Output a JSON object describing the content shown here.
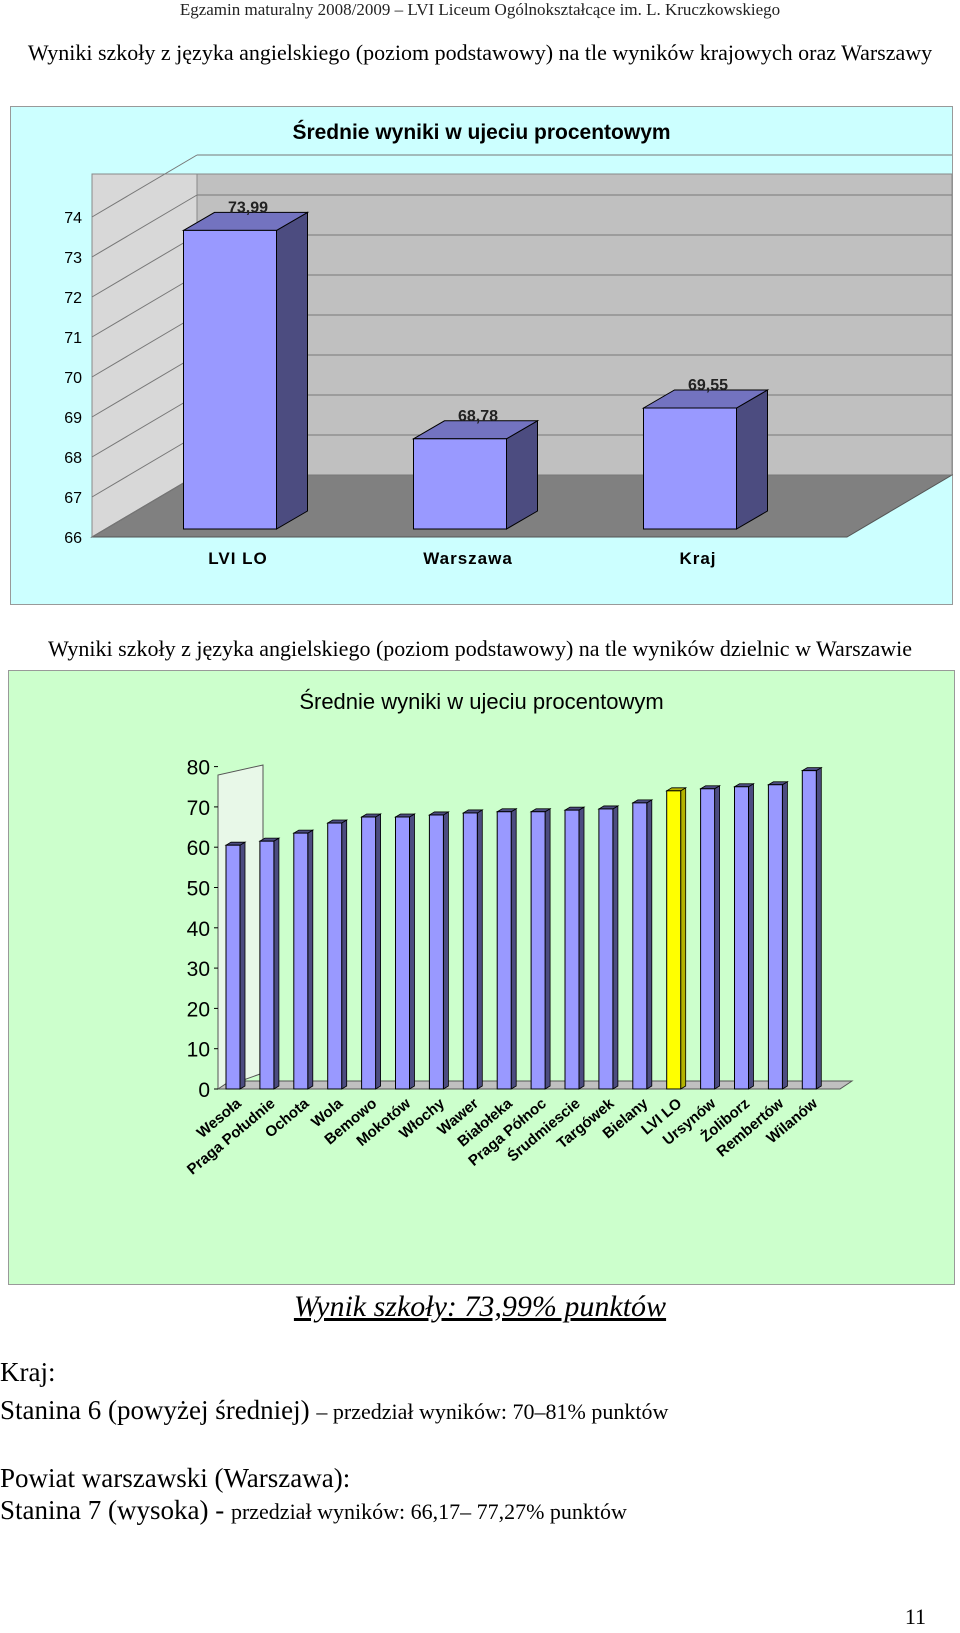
{
  "header": "Egzamin maturalny 2008/2009 – LVI Liceum Ogólnokształcące im. L. Kruczkowskiego",
  "section1": {
    "title": "Wyniki szkoły z języka angielskiego (poziom podstawowy) na tle wyników krajowych oraz Warszawy"
  },
  "section2": {
    "title": "Wyniki szkoły z języka angielskiego (poziom podstawowy) na tle wyników dzielnic w Warszawie"
  },
  "chart_data": [
    {
      "type": "bar",
      "title": "Średnie wyniki w ujeciu procentowym",
      "categories": [
        "LVI LO",
        "Warszawa",
        "Kraj"
      ],
      "values": [
        73.99,
        68.78,
        69.55
      ],
      "data_labels": [
        "73,99",
        "68,78",
        "69,55"
      ],
      "ylim": [
        66,
        74
      ],
      "yticks": [
        "66",
        "67",
        "68",
        "69",
        "70",
        "71",
        "72",
        "73",
        "74"
      ],
      "grid": true,
      "colors": {
        "bar": "#9999ff",
        "bar_side": "#4c4c80",
        "background": "#ccffff",
        "wall": "#c0c0c0"
      }
    },
    {
      "type": "bar",
      "title": "Średnie wyniki w ujeciu procentowym",
      "categories": [
        "Wesoła",
        "Praga Południe",
        "Ochota",
        "Wola",
        "Bemowo",
        "Mokotów",
        "Włochy",
        "Wawer",
        "Białołeka",
        "Praga Północ",
        "Śrudmiescie",
        "Targówek",
        "Bielany",
        "LVI LO",
        "Ursynów",
        "Żoliborz",
        "Rembertów",
        "Wilanów"
      ],
      "values": [
        60.5,
        61.5,
        63.5,
        66,
        67.5,
        67.5,
        68,
        68.5,
        68.8,
        68.8,
        69.2,
        69.5,
        71,
        73.99,
        74.5,
        75,
        75.5,
        79
      ],
      "highlight": "LVI LO",
      "ylim": [
        0,
        80
      ],
      "yticks": [
        "0",
        "10",
        "20",
        "30",
        "40",
        "50",
        "60",
        "70",
        "80"
      ],
      "grid": false,
      "colors": {
        "bar": "#9999ff",
        "bar_side": "#4c4c80",
        "highlight": "#ffff00",
        "highlight_side": "#b3b300",
        "background": "#ccffcc"
      }
    }
  ],
  "result": "Wynik szkoły: 73,99% punktów",
  "kraj": {
    "label": "Kraj:",
    "stanina": "Stanina 6 (powyżej średniej)",
    "range": "– przedział wyników: 70–81% punktów"
  },
  "powiat": {
    "label": "Powiat warszawski (Warszawa):",
    "stanina": "Stanina 7 (wysoka) -",
    "range": "przedział wyników: 66,17– 77,27% punktów"
  },
  "page_number": "11"
}
